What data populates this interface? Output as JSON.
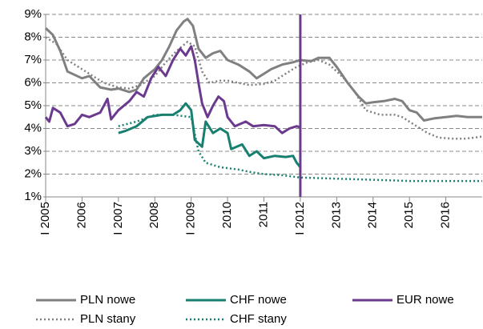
{
  "chart_data": {
    "type": "line",
    "xlim": [
      2005,
      2017
    ],
    "ylim": [
      1,
      9
    ],
    "yticks": [
      {
        "value": 1,
        "label": "1%"
      },
      {
        "value": 2,
        "label": "2%"
      },
      {
        "value": 3,
        "label": "3%"
      },
      {
        "value": 4,
        "label": "4%"
      },
      {
        "value": 5,
        "label": "5%"
      },
      {
        "value": 6,
        "label": "6%"
      },
      {
        "value": 7,
        "label": "7%"
      },
      {
        "value": 8,
        "label": "8%"
      },
      {
        "value": 9,
        "label": "9%"
      }
    ],
    "xticks": [
      {
        "value": 2005,
        "label": "I 2005"
      },
      2006,
      {
        "value": 2007,
        "label": "I 2007"
      },
      2008,
      {
        "value": 2009,
        "label": "I 2009"
      },
      2010,
      2011,
      {
        "value": 2012,
        "label": "I 2012"
      },
      2013,
      2014,
      2015,
      2016
    ],
    "grid": true,
    "vline": {
      "x": 2012,
      "color": "#6b3a8e"
    },
    "series": [
      {
        "name": "PLN nowe",
        "color": "#808080",
        "dash": "solid",
        "x": [
          2005,
          2005.2,
          2005.4,
          2005.6,
          2006,
          2006.2,
          2006.5,
          2006.8,
          2007,
          2007.3,
          2007.5,
          2007.7,
          2008,
          2008.2,
          2008.4,
          2008.6,
          2008.8,
          2008.9,
          2009.05,
          2009.2,
          2009.4,
          2009.6,
          2009.8,
          2010,
          2010.3,
          2010.6,
          2010.8,
          2011,
          2011.2,
          2011.5,
          2011.8,
          2012,
          2012.3,
          2012.5,
          2012.8,
          2013,
          2013.3,
          2013.6,
          2013.8,
          2014,
          2014.3,
          2014.6,
          2014.8,
          2015,
          2015.2,
          2015.4,
          2015.7,
          2016,
          2016.3,
          2016.6,
          2017
        ],
        "values": [
          8.4,
          8.1,
          7.4,
          6.5,
          6.2,
          6.3,
          5.8,
          5.7,
          5.75,
          5.6,
          5.7,
          6.2,
          6.6,
          7.0,
          7.6,
          8.3,
          8.7,
          8.8,
          8.5,
          7.5,
          7.1,
          7.3,
          7.4,
          7.0,
          6.8,
          6.5,
          6.2,
          6.4,
          6.6,
          6.8,
          6.9,
          7.0,
          6.95,
          7.1,
          7.1,
          6.7,
          6.0,
          5.4,
          5.1,
          5.15,
          5.2,
          5.3,
          5.2,
          4.8,
          4.7,
          4.35,
          4.45,
          4.5,
          4.55,
          4.5,
          4.5
        ]
      },
      {
        "name": "CHF nowe",
        "color": "#178070",
        "dash": "solid",
        "x": [
          2007,
          2007.2,
          2007.5,
          2007.8,
          2008.2,
          2008.5,
          2008.7,
          2008.85,
          2009,
          2009.1,
          2009.3,
          2009.4,
          2009.6,
          2009.8,
          2010,
          2010.1,
          2010.4,
          2010.6,
          2010.8,
          2011,
          2011.3,
          2011.6,
          2011.8,
          2011.9,
          2012
        ],
        "values": [
          3.8,
          3.9,
          4.1,
          4.5,
          4.6,
          4.6,
          4.8,
          5.1,
          4.8,
          3.5,
          3.2,
          4.3,
          3.8,
          4.0,
          3.8,
          3.1,
          3.3,
          2.8,
          3.0,
          2.7,
          2.8,
          2.75,
          2.8,
          2.5,
          2.3
        ]
      },
      {
        "name": "EUR nowe",
        "color": "#6b3a8e",
        "dash": "solid",
        "x": [
          2005,
          2005.1,
          2005.2,
          2005.4,
          2005.6,
          2005.8,
          2006,
          2006.2,
          2006.5,
          2006.7,
          2006.8,
          2007,
          2007.3,
          2007.5,
          2007.7,
          2007.9,
          2008.1,
          2008.3,
          2008.5,
          2008.7,
          2008.85,
          2009,
          2009.1,
          2009.2,
          2009.3,
          2009.45,
          2009.6,
          2009.75,
          2009.9,
          2010,
          2010.2,
          2010.5,
          2010.7,
          2011,
          2011.3,
          2011.5,
          2011.7,
          2011.9,
          2012
        ],
        "values": [
          4.5,
          4.3,
          4.9,
          4.7,
          4.1,
          4.2,
          4.6,
          4.5,
          4.7,
          5.3,
          4.4,
          4.8,
          5.2,
          5.6,
          5.4,
          6.2,
          6.7,
          6.3,
          7.0,
          7.5,
          7.2,
          7.6,
          7.0,
          6.0,
          5.1,
          4.5,
          5.0,
          5.4,
          5.2,
          4.5,
          4.1,
          4.3,
          4.1,
          4.15,
          4.1,
          3.8,
          4.0,
          4.1,
          4.05
        ]
      },
      {
        "name": "PLN stany",
        "color": "#808080",
        "dash": "dotted",
        "x": [
          2005,
          2005.3,
          2005.6,
          2006,
          2006.3,
          2006.6,
          2007,
          2007.3,
          2007.6,
          2008,
          2008.3,
          2008.6,
          2008.9,
          2009.1,
          2009.3,
          2009.5,
          2009.8,
          2010,
          2010.3,
          2010.6,
          2011,
          2011.3,
          2011.6,
          2011.9,
          2012.2,
          2012.5,
          2012.8,
          2013.2,
          2013.5,
          2013.8,
          2014.2,
          2014.6,
          2014.8,
          2015.2,
          2015.5,
          2015.8,
          2016.2,
          2016.5,
          2016.8,
          2017
        ],
        "values": [
          8.0,
          7.7,
          7.0,
          6.6,
          6.3,
          6.0,
          5.8,
          5.75,
          5.9,
          6.3,
          6.9,
          7.4,
          7.8,
          7.6,
          6.5,
          6.0,
          6.1,
          6.1,
          6.0,
          5.9,
          5.95,
          6.1,
          6.4,
          6.7,
          6.9,
          7.0,
          6.8,
          6.2,
          5.6,
          4.8,
          4.6,
          4.6,
          4.5,
          4.1,
          3.8,
          3.6,
          3.55,
          3.55,
          3.6,
          3.65
        ]
      },
      {
        "name": "CHF stany",
        "color": "#178070",
        "dash": "dotted",
        "x": [
          2007,
          2007.5,
          2008,
          2008.5,
          2009,
          2009.2,
          2009.4,
          2009.8,
          2010.3,
          2010.6,
          2011,
          2011.5,
          2012,
          2013,
          2014,
          2015,
          2016,
          2017
        ],
        "values": [
          4.1,
          4.3,
          4.6,
          4.6,
          4.5,
          3.0,
          2.5,
          2.3,
          2.2,
          2.1,
          2.0,
          1.95,
          1.85,
          1.8,
          1.75,
          1.7,
          1.7,
          1.7
        ]
      }
    ]
  }
}
